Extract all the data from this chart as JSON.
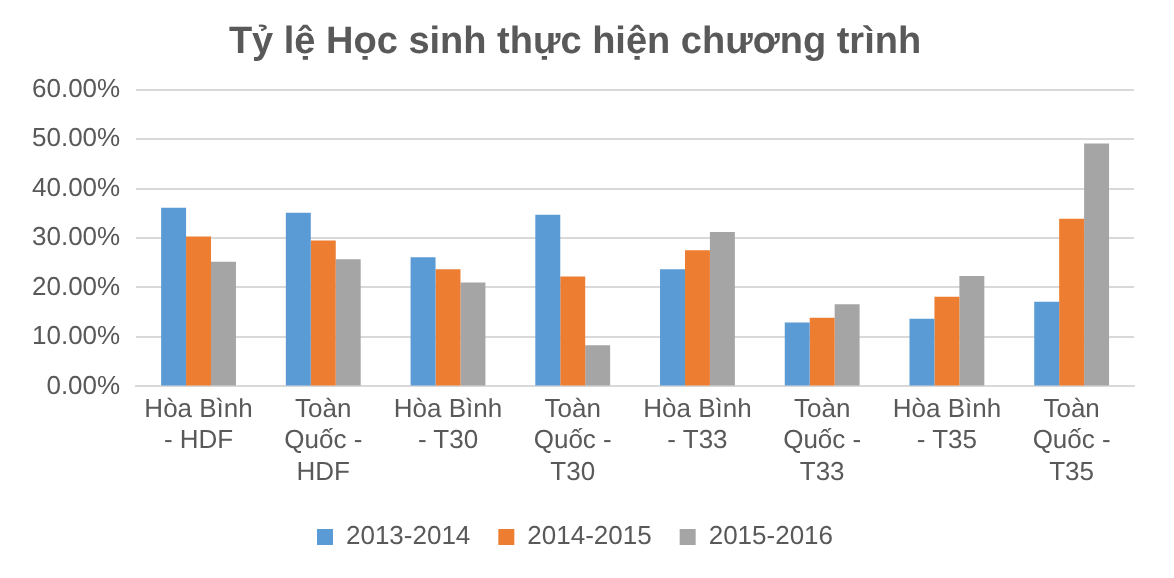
{
  "chart_data": {
    "type": "bar",
    "title": "Tỷ lệ Học sinh thực hiện chương trình",
    "categories": [
      "Hòa Bình - HDF",
      "Toàn Quốc - HDF",
      "Hòa Bình - T30",
      "Toàn Quốc - T30",
      "Hòa Bình - T33",
      "Toàn Quốc - T33",
      "Hòa Bình - T35",
      "Toàn Quốc - T35"
    ],
    "series": [
      {
        "name": "2013-2014",
        "color": "#5b9bd5",
        "values": [
          36.1,
          35.1,
          26.1,
          34.7,
          23.7,
          12.9,
          13.7,
          17.1
        ]
      },
      {
        "name": "2014-2015",
        "color": "#ed7d31",
        "values": [
          30.3,
          29.5,
          23.7,
          22.2,
          27.5,
          13.9,
          18.1,
          33.9
        ]
      },
      {
        "name": "2015-2016",
        "color": "#a5a5a5",
        "values": [
          25.2,
          25.7,
          21.0,
          8.3,
          31.2,
          16.6,
          22.3,
          49.1
        ]
      }
    ],
    "ylim": [
      0,
      60
    ],
    "yticks": [
      {
        "value": 0,
        "label": "0.00%"
      },
      {
        "value": 10,
        "label": "10.00%"
      },
      {
        "value": 20,
        "label": "20.00%"
      },
      {
        "value": 30,
        "label": "30.00%"
      },
      {
        "value": 40,
        "label": "40.00%"
      },
      {
        "value": 50,
        "label": "50.00%"
      },
      {
        "value": 60,
        "label": "60.00%"
      }
    ],
    "grid": "y",
    "legend": "bottom"
  }
}
